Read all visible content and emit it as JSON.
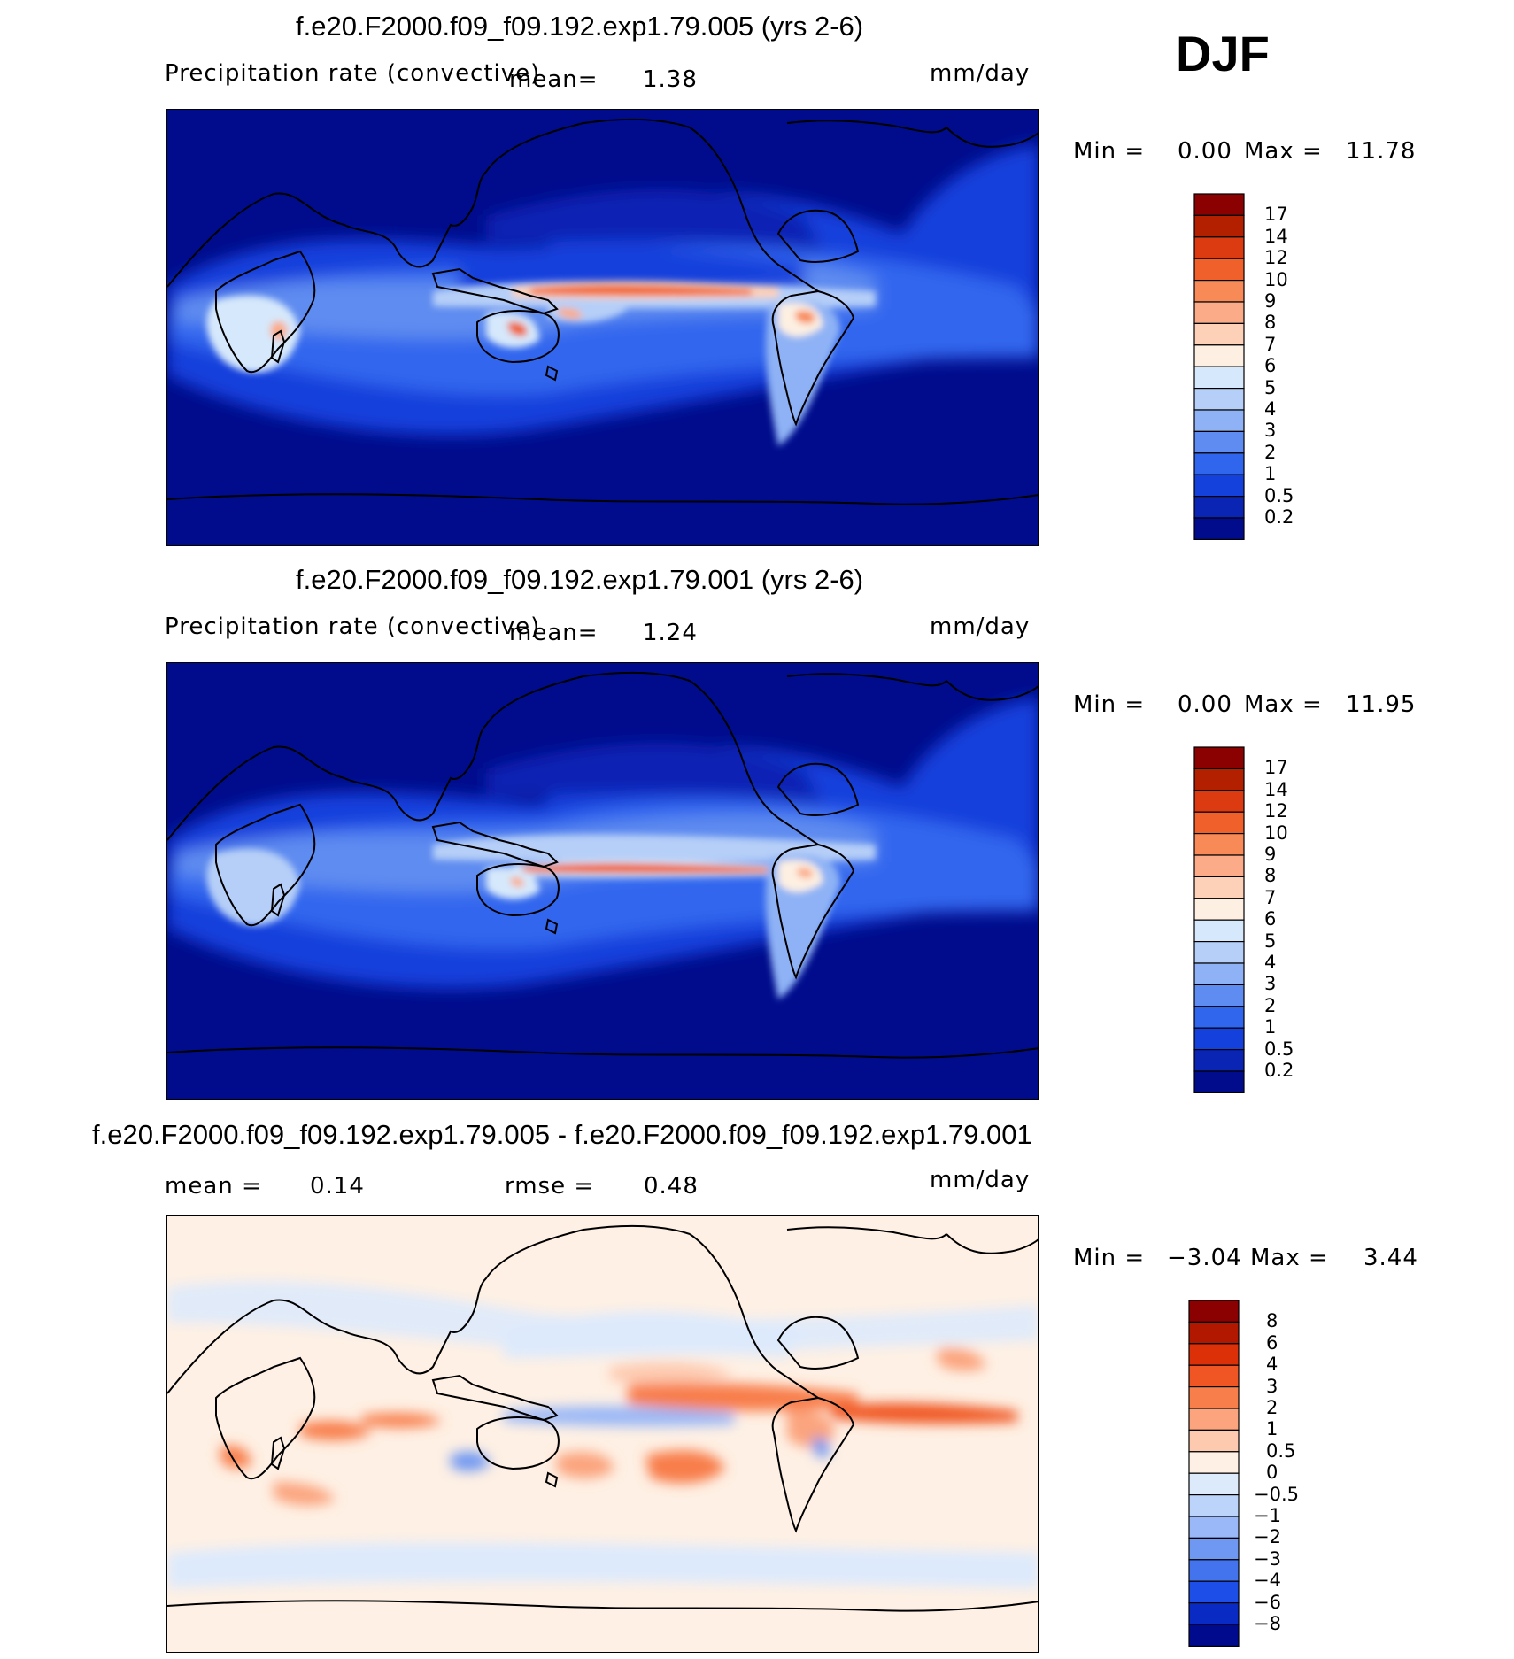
{
  "season": "DJF",
  "units": "mm/day",
  "panels": [
    {
      "title": "f.e20.F2000.f09_f09.192.exp1.79.005 (yrs 2-6)",
      "field_label": "Precipitation rate (convective)",
      "mean_label": "mean=",
      "mean_value": "1.38",
      "min_label": "Min =",
      "min_value": "0.00",
      "max_label": "Max =",
      "max_value": "11.78"
    },
    {
      "title": "f.e20.F2000.f09_f09.192.exp1.79.001 (yrs 2-6)",
      "field_label": "Precipitation rate (convective)",
      "mean_label": "mean=",
      "mean_value": "1.24",
      "min_label": "Min =",
      "min_value": "0.00",
      "max_label": "Max =",
      "max_value": "11.95"
    },
    {
      "title": "f.e20.F2000.f09_f09.192.exp1.79.005 - f.e20.F2000.f09_f09.192.exp1.79.001",
      "mean_label": "mean =",
      "mean_value": "0.14",
      "rmse_label": "rmse =",
      "rmse_value": "0.48",
      "min_label": "Min =",
      "min_value": "−3.04",
      "max_label": "Max =",
      "max_value": "3.44"
    }
  ],
  "legends": {
    "precip": {
      "labels": [
        "17",
        "14",
        "12",
        "10",
        "9",
        "8",
        "7",
        "6",
        "5",
        "4",
        "3",
        "2",
        "1",
        "0.5",
        "0.2"
      ],
      "colors": [
        "#8b0000",
        "#b22000",
        "#dc3a10",
        "#f0602a",
        "#f88a58",
        "#fbab88",
        "#fdd0b8",
        "#fdf0e2",
        "#d6e8fb",
        "#b6cff8",
        "#8eb2f5",
        "#5e8cf0",
        "#3066ee",
        "#1440dc",
        "#0a24b4",
        "#000c8c"
      ]
    },
    "diff": {
      "labels": [
        "8",
        "6",
        "4",
        "3",
        "2",
        "1",
        "0.5",
        "0",
        "−0.5",
        "−1",
        "−2",
        "−3",
        "−4",
        "−6",
        "−8"
      ],
      "colors": [
        "#8b0000",
        "#b21800",
        "#dc3008",
        "#f05624",
        "#f87e4c",
        "#fba47e",
        "#fdcab0",
        "#fef0e4",
        "#ddeafc",
        "#bcd3fa",
        "#9ab8f7",
        "#6f98f2",
        "#4374ee",
        "#1e4ee8",
        "#0a2ac4",
        "#000a8c"
      ]
    }
  }
}
